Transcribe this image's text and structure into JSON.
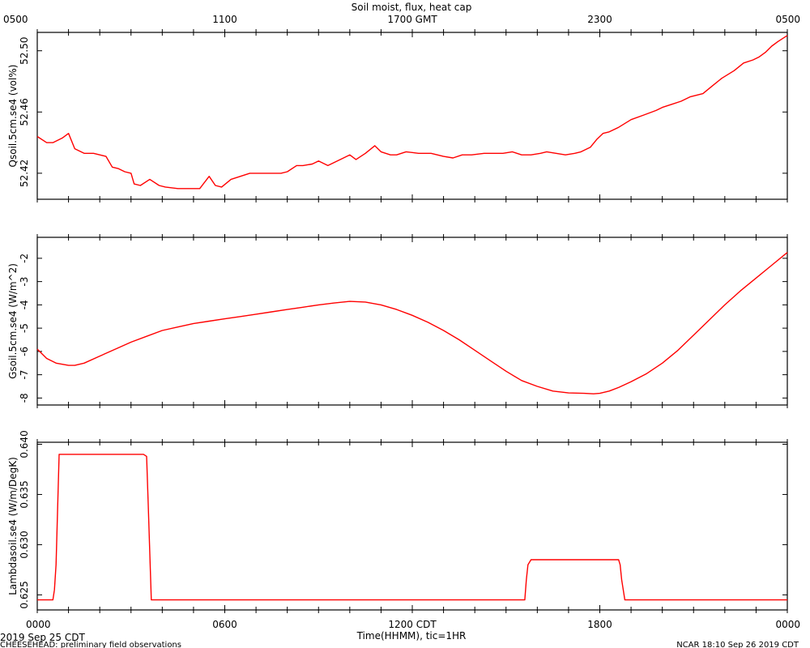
{
  "chart_data": {
    "type": "line",
    "title": "Soil moist, flux, heat cap",
    "x_top_ticks": [
      "0500",
      "1100",
      "1700 GMT",
      "2300",
      "0500"
    ],
    "x_bottom_ticks": [
      "0000",
      "0600",
      "1200 CDT",
      "1800",
      "0000"
    ],
    "x_hours_range": [
      0,
      24
    ],
    "xlabel": "Time(HHMM), tic=1HR",
    "date_label": "2019 Sep 25 CDT",
    "footer_left": "CHEESEHEAD: preliminary field observations",
    "footer_right": "NCAR 18:10 Sep 26 2019 CDT",
    "line_color": "#ff0000",
    "panels": [
      {
        "ylabel": "Qsoil.5cm.se4 (vol%)",
        "ylim": [
          52.403,
          52.512
        ],
        "yticks": [
          52.42,
          52.46,
          52.5
        ],
        "ytick_labels": [
          "52.42",
          "52.46",
          "52.50"
        ],
        "series": [
          {
            "x": [
              0,
              0.3,
              0.5,
              0.8,
              1.0,
              1.2,
              1.4,
              1.5,
              1.8,
              2.0,
              2.2,
              2.4,
              2.6,
              2.8,
              3.0,
              3.1,
              3.3,
              3.6,
              3.9,
              4.1,
              4.5,
              4.9,
              5.2,
              5.5,
              5.7,
              5.9,
              6.2,
              6.8,
              7.5,
              7.8,
              8.0,
              8.3,
              8.5,
              8.8,
              9.0,
              9.3,
              9.5,
              9.8,
              10.0,
              10.2,
              10.5,
              10.8,
              11.0,
              11.3,
              11.5,
              11.8,
              12.2,
              12.6,
              12.8,
              13.0,
              13.3,
              13.6,
              13.9,
              14.3,
              14.6,
              14.9,
              15.2,
              15.5,
              15.8,
              16.1,
              16.3,
              16.6,
              16.9,
              17.2,
              17.4,
              17.7,
              17.9,
              18.1,
              18.3,
              18.6,
              19.0,
              19.4,
              19.8,
              20.0,
              20.3,
              20.6,
              20.9,
              21.3,
              21.6,
              21.9,
              22.3,
              22.6,
              22.9,
              23.1,
              23.3,
              23.5,
              23.7,
              24.0
            ],
            "y": [
              52.444,
              52.44,
              52.44,
              52.443,
              52.446,
              52.436,
              52.434,
              52.433,
              52.433,
              52.432,
              52.431,
              52.424,
              52.423,
              52.421,
              52.42,
              52.413,
              52.412,
              52.416,
              52.412,
              52.411,
              52.41,
              52.41,
              52.41,
              52.418,
              52.412,
              52.411,
              52.416,
              52.42,
              52.42,
              52.42,
              52.421,
              52.425,
              52.425,
              52.426,
              52.428,
              52.425,
              52.427,
              52.43,
              52.432,
              52.429,
              52.433,
              52.438,
              52.434,
              52.432,
              52.432,
              52.434,
              52.433,
              52.433,
              52.432,
              52.431,
              52.43,
              52.432,
              52.432,
              52.433,
              52.433,
              52.433,
              52.434,
              52.432,
              52.432,
              52.433,
              52.434,
              52.433,
              52.432,
              52.433,
              52.434,
              52.437,
              52.442,
              52.446,
              52.447,
              52.45,
              52.455,
              52.458,
              52.461,
              52.463,
              52.465,
              52.467,
              52.47,
              52.472,
              52.477,
              52.482,
              52.487,
              52.492,
              52.494,
              52.496,
              52.499,
              52.503,
              52.506,
              52.51
            ]
          }
        ]
      },
      {
        "ylabel": "Gsoil.5cm.se4 (W/m^2)",
        "ylim": [
          -8.3,
          -1.1
        ],
        "yticks": [
          -8,
          -7,
          -6,
          -5,
          -4,
          -3,
          -2
        ],
        "ytick_labels": [
          "-8",
          "-7",
          "-6",
          "-5",
          "-4",
          "-3",
          "-2"
        ],
        "series": [
          {
            "x": [
              0,
              0.3,
              0.6,
              1.0,
              1.2,
              1.5,
              2.0,
              2.5,
              3.0,
              3.5,
              4.0,
              4.5,
              5.0,
              5.5,
              6.0,
              6.5,
              7.0,
              7.5,
              8.0,
              8.5,
              9.0,
              9.5,
              10.0,
              10.5,
              11.0,
              11.5,
              12.0,
              12.5,
              13.0,
              13.5,
              14.0,
              14.5,
              15.0,
              15.5,
              16.0,
              16.5,
              17.0,
              17.5,
              17.8,
              18.0,
              18.3,
              18.6,
              19.0,
              19.5,
              20.0,
              20.5,
              21.0,
              21.5,
              22.0,
              22.5,
              23.0,
              23.5,
              24.0
            ],
            "y": [
              -5.9,
              -6.3,
              -6.5,
              -6.6,
              -6.6,
              -6.5,
              -6.2,
              -5.9,
              -5.6,
              -5.35,
              -5.1,
              -4.95,
              -4.8,
              -4.7,
              -4.6,
              -4.5,
              -4.4,
              -4.3,
              -4.2,
              -4.1,
              -4.0,
              -3.92,
              -3.85,
              -3.88,
              -4.0,
              -4.2,
              -4.45,
              -4.75,
              -5.1,
              -5.5,
              -5.95,
              -6.4,
              -6.85,
              -7.25,
              -7.5,
              -7.7,
              -7.78,
              -7.8,
              -7.82,
              -7.8,
              -7.7,
              -7.55,
              -7.3,
              -6.95,
              -6.5,
              -5.95,
              -5.3,
              -4.65,
              -4.0,
              -3.4,
              -2.85,
              -2.3,
              -1.75
            ]
          }
        ]
      },
      {
        "ylabel": "Lambdasoil.se4 (W/m/DegK)",
        "ylim": [
          0.6235,
          0.6402
        ],
        "yticks": [
          0.625,
          0.63,
          0.635,
          0.64
        ],
        "ytick_labels": [
          "0.625",
          "0.630",
          "0.635",
          "0.640"
        ],
        "series": [
          {
            "x": [
              0,
              0.5,
              0.55,
              0.6,
              0.7,
              0.8,
              3.4,
              3.5,
              3.55,
              3.65,
              15.6,
              15.65,
              15.7,
              15.8,
              18.6,
              18.65,
              18.7,
              18.8,
              24.0
            ],
            "y": [
              0.6245,
              0.6245,
              0.6255,
              0.628,
              0.639,
              0.639,
              0.639,
              0.6388,
              0.634,
              0.6245,
              0.6245,
              0.6265,
              0.628,
              0.6285,
              0.6285,
              0.628,
              0.6265,
              0.6245,
              0.6245
            ]
          }
        ]
      }
    ]
  }
}
